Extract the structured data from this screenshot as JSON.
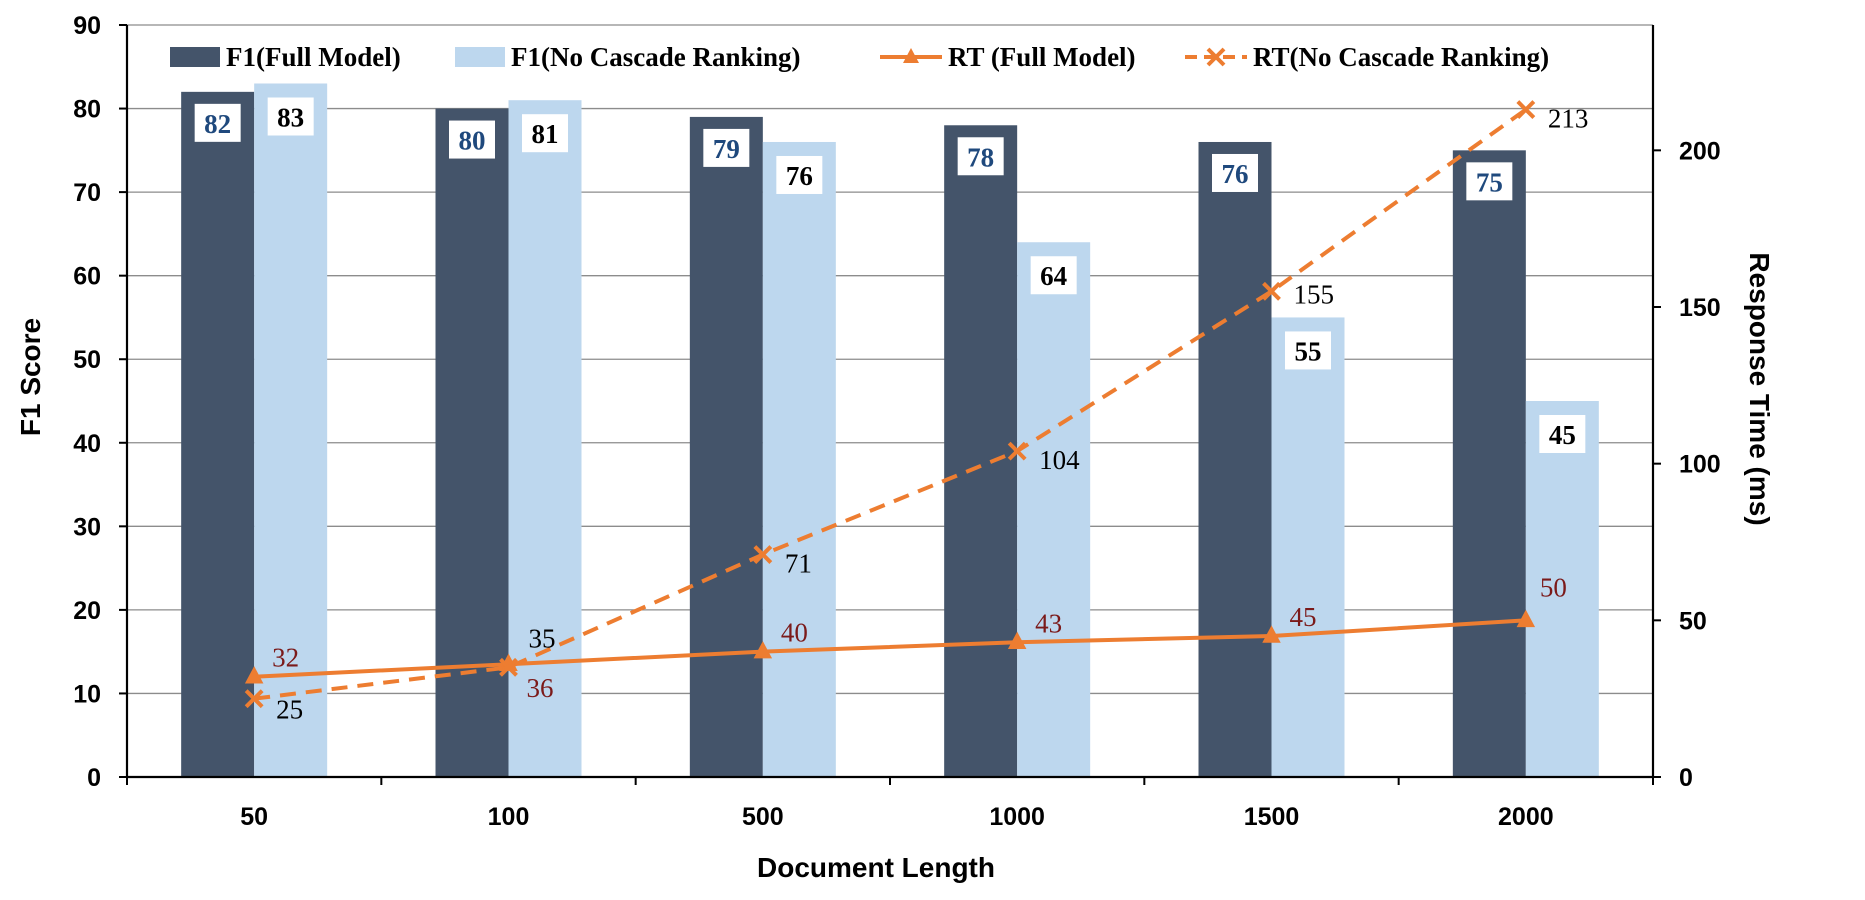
{
  "chart_data": {
    "type": "bar",
    "categories": [
      "50",
      "100",
      "500",
      "1000",
      "1500",
      "2000"
    ],
    "xlabel": "Document Length",
    "ylabel": "F1 Score",
    "y2label": "Response Time (ms)",
    "ylim": [
      0,
      90
    ],
    "yticks": [
      0,
      10,
      20,
      30,
      40,
      50,
      60,
      70,
      80,
      90
    ],
    "y2lim": [
      0,
      240
    ],
    "y2ticks": [
      0,
      50,
      100,
      150,
      200
    ],
    "legend_position": "top",
    "grid": true,
    "series": [
      {
        "name": "F1(Full Model)",
        "kind": "bar",
        "axis": "left",
        "color": "#44546a",
        "label_color": "#1f497d",
        "values": [
          82,
          80,
          79,
          78,
          76,
          75
        ]
      },
      {
        "name": "F1(No Cascade Ranking)",
        "kind": "bar",
        "axis": "left",
        "color": "#bdd7ee",
        "label_color": "#000000",
        "values": [
          83,
          81,
          76,
          64,
          55,
          45
        ]
      },
      {
        "name": "RT (Full Model)",
        "kind": "line",
        "axis": "right",
        "color": "#ed7d31",
        "marker": "triangle",
        "dash": "solid",
        "label_color": "#7b1a1a",
        "values": [
          32,
          36,
          40,
          43,
          45,
          50
        ]
      },
      {
        "name": "RT(No Cascade Ranking)",
        "kind": "line",
        "axis": "right",
        "color": "#ed7d31",
        "marker": "x",
        "dash": "dashed",
        "label_color": "#000000",
        "values": [
          25,
          35,
          71,
          104,
          155,
          213
        ]
      }
    ]
  }
}
